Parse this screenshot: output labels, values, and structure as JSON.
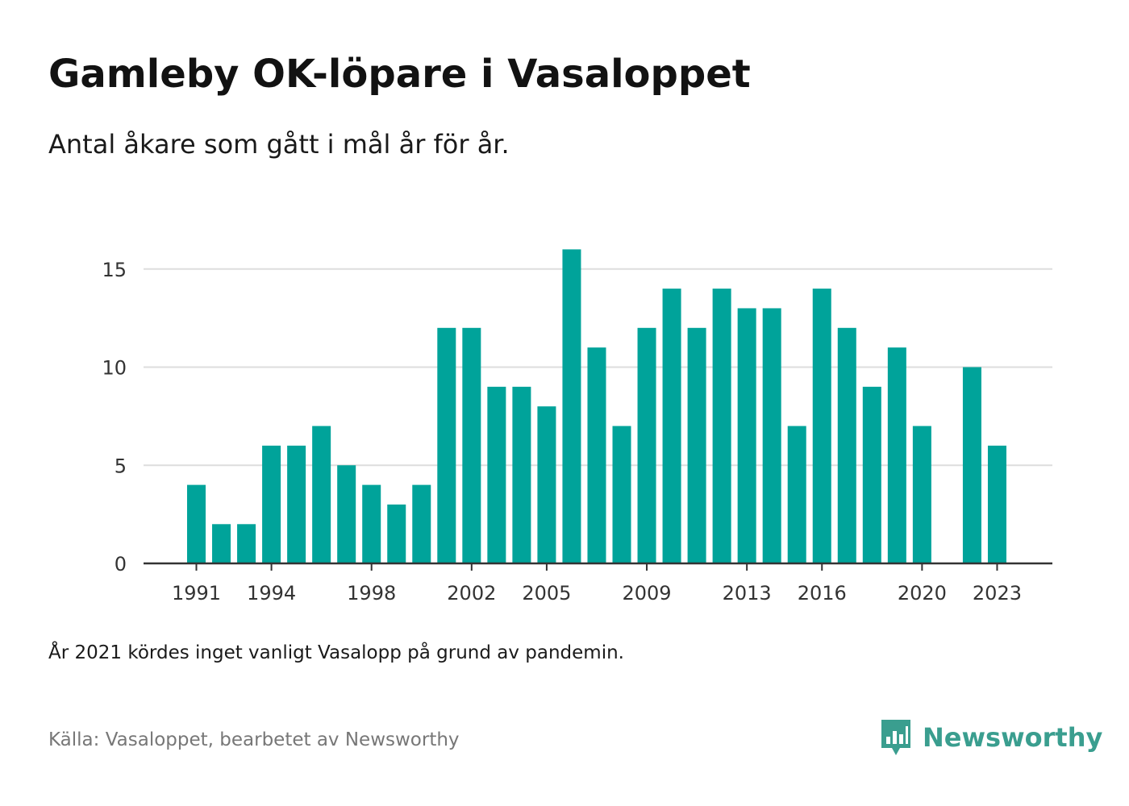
{
  "title": "Gamleby OK-löpare i Vasaloppet",
  "subtitle": "Antal åkare som gått i mål år för år.",
  "note": "År 2021 kördes inget vanligt Vasalopp på grund av pandemin.",
  "source": "Källa: Vasaloppet, bearbetet av Newsworthy",
  "brand": {
    "name": "Newsworthy",
    "icon": "newsworthy-logo-icon",
    "color": "#3a9e8f"
  },
  "colors": {
    "bar": "#00a39a",
    "grid": "#dddddd",
    "axis": "#333333"
  },
  "chart_data": {
    "type": "bar",
    "title": "Gamleby OK-löpare i Vasaloppet",
    "subtitle": "Antal åkare som gått i mål år för år.",
    "xlabel": "",
    "ylabel": "",
    "categories": [
      1991,
      1992,
      1993,
      1994,
      1995,
      1996,
      1997,
      1998,
      1999,
      2000,
      2001,
      2002,
      2003,
      2004,
      2005,
      2006,
      2007,
      2008,
      2009,
      2010,
      2011,
      2012,
      2013,
      2014,
      2015,
      2016,
      2017,
      2018,
      2019,
      2020,
      2021,
      2022,
      2023
    ],
    "values": [
      4,
      2,
      2,
      6,
      6,
      7,
      5,
      4,
      3,
      4,
      12,
      12,
      9,
      9,
      8,
      16,
      11,
      7,
      12,
      14,
      12,
      14,
      13,
      13,
      7,
      14,
      12,
      9,
      11,
      7,
      null,
      10,
      6
    ],
    "x_tick_labels": [
      "1991",
      "1994",
      "1998",
      "2002",
      "2005",
      "2009",
      "2013",
      "2016",
      "2020",
      "2023"
    ],
    "y_ticks": [
      0,
      5,
      10,
      15
    ],
    "ylim": [
      0,
      16
    ],
    "grid": true,
    "legend": "none"
  }
}
